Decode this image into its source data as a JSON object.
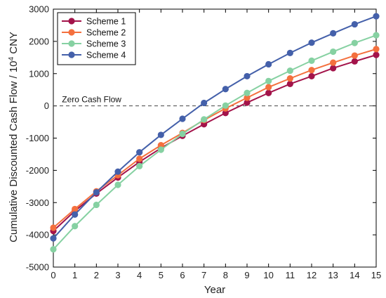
{
  "chart_data": {
    "type": "line",
    "xlabel": "Year",
    "ylabel_main": "Cumulative Discounted Cash Flow / 10",
    "ylabel_sup": "4",
    "ylabel_unit": " CNY",
    "xlim": [
      0,
      15
    ],
    "ylim": [
      -5000,
      3000
    ],
    "x_ticks": [
      0,
      1,
      2,
      3,
      4,
      5,
      6,
      7,
      8,
      9,
      10,
      11,
      12,
      13,
      14,
      15
    ],
    "y_ticks": [
      -5000,
      -4000,
      -3000,
      -2000,
      -1000,
      0,
      1000,
      2000,
      3000
    ],
    "grid": false,
    "legend_position": "top-left",
    "reference_line": {
      "y": 0,
      "label": "Zero Cash Flow",
      "style": "dashed"
    },
    "x": [
      0,
      1,
      2,
      3,
      4,
      5,
      6,
      7,
      8,
      9,
      10,
      11,
      12,
      13,
      14,
      15
    ],
    "series": [
      {
        "name": "Scheme 1",
        "color": "#a3134a",
        "values": [
          -3880,
          -3260,
          -2720,
          -2220,
          -1740,
          -1310,
          -930,
          -570,
          -220,
          100,
          400,
          680,
          920,
          1170,
          1380,
          1580
        ]
      },
      {
        "name": "Scheme 2",
        "color": "#f4703e",
        "values": [
          -3780,
          -3200,
          -2650,
          -2150,
          -1640,
          -1220,
          -840,
          -440,
          -80,
          250,
          580,
          850,
          1110,
          1340,
          1560,
          1760
        ]
      },
      {
        "name": "Scheme 3",
        "color": "#86d1a2",
        "values": [
          -4450,
          -3730,
          -3070,
          -2450,
          -1870,
          -1360,
          -870,
          -420,
          10,
          400,
          770,
          1090,
          1400,
          1680,
          1950,
          2190
        ]
      },
      {
        "name": "Scheme 4",
        "color": "#4460aa",
        "values": [
          -4110,
          -3370,
          -2680,
          -2040,
          -1440,
          -900,
          -400,
          90,
          520,
          920,
          1290,
          1640,
          1960,
          2250,
          2530,
          2780
        ]
      }
    ]
  }
}
